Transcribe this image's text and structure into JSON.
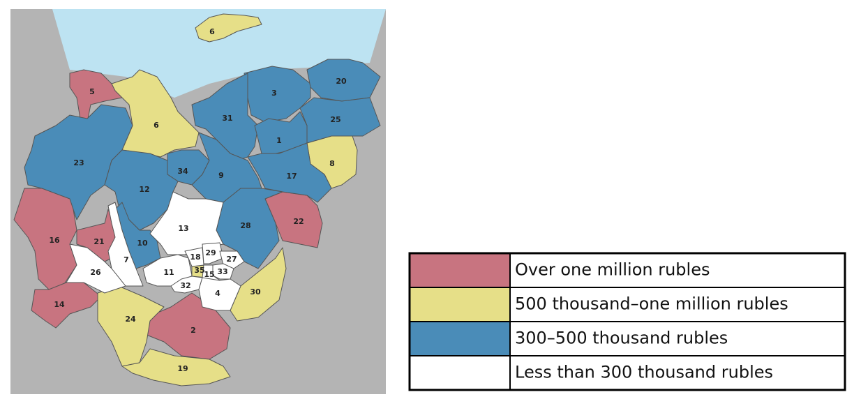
{
  "legend": [
    {
      "label": "Over one million rubles",
      "color": "#c87480",
      "regions": [
        "5",
        "16",
        "21",
        "14",
        "22",
        "2"
      ]
    },
    {
      "label": "500 thousand–one million rubles",
      "color": "#e6df88",
      "regions": [
        "6",
        "6",
        "8",
        "24",
        "19",
        "30",
        "35"
      ]
    },
    {
      "label": "300–500 thousand rubles",
      "color": "#4a8cb8",
      "regions": [
        "3",
        "20",
        "31",
        "25",
        "1",
        "23",
        "34",
        "9",
        "17",
        "12",
        "28",
        "10"
      ]
    },
    {
      "label": "Less than 300 thousand rubles",
      "color": "#ffffff",
      "regions": [
        "13",
        "7",
        "26",
        "11",
        "18",
        "29",
        "27",
        "33",
        "15",
        "32",
        "4"
      ]
    }
  ]
}
